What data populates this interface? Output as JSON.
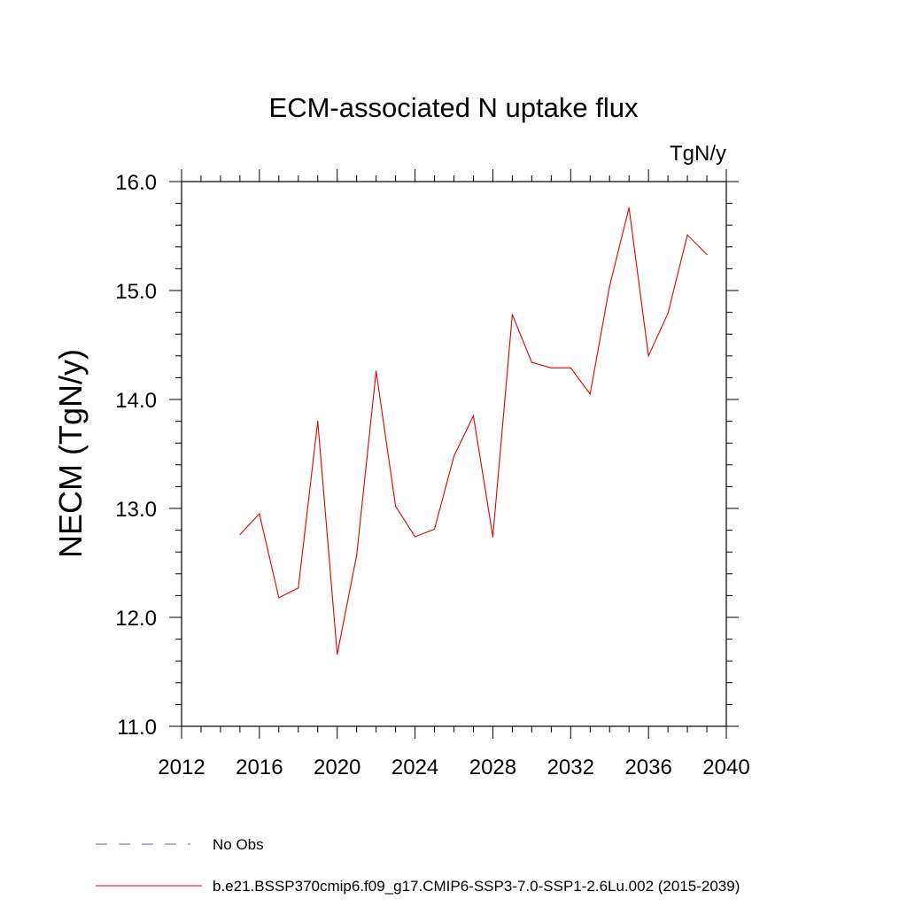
{
  "chart_data": {
    "type": "line",
    "title": "ECM-associated N uptake flux",
    "units": "TgN/y",
    "ylabel": "NECM  (TgN/y)",
    "xlabel": "",
    "xlim": [
      2012,
      2040
    ],
    "ylim": [
      11.0,
      16.0
    ],
    "xticks": [
      2012,
      2016,
      2020,
      2024,
      2028,
      2032,
      2036,
      2040
    ],
    "yticks": [
      "11.0",
      "12.0",
      "13.0",
      "14.0",
      "15.0",
      "16.0"
    ],
    "grid": false,
    "legend_position": "bottom-left",
    "legend": [
      {
        "label": "No Obs",
        "color": "#6a5acd",
        "style": "dashed"
      },
      {
        "label": "b.e21.BSSP370cmip6.f09_g17.CMIP6-SSP3-7.0-SSP1-2.6Lu.002 (2015-2039)",
        "color": "#e00000",
        "style": "solid"
      }
    ],
    "series": [
      {
        "name": "b.e21.BSSP370cmip6.f09_g17.CMIP6-SSP3-7.0-SSP1-2.6Lu.002 (2015-2039)",
        "color": "#e00000",
        "x": [
          2015,
          2016,
          2017,
          2018,
          2019,
          2020,
          2021,
          2022,
          2023,
          2024,
          2025,
          2026,
          2027,
          2028,
          2029,
          2030,
          2031,
          2032,
          2033,
          2034,
          2035,
          2036,
          2037,
          2038,
          2039
        ],
        "values": [
          12.76,
          12.95,
          12.18,
          12.27,
          13.8,
          11.66,
          12.57,
          14.26,
          13.02,
          12.74,
          12.81,
          13.48,
          13.85,
          12.74,
          14.78,
          14.34,
          14.29,
          14.29,
          14.05,
          15.04,
          15.76,
          14.4,
          14.79,
          15.51,
          15.33
        ]
      }
    ]
  }
}
